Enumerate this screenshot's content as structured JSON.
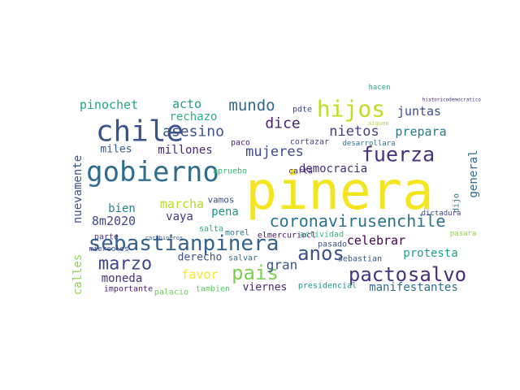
{
  "word_cloud": {
    "words": [
      {
        "text": "pinera",
        "color": "#f4e61e"
      },
      {
        "text": "chile",
        "color": "#3a558c"
      },
      {
        "text": "gobierno",
        "color": "#2f6c8e"
      },
      {
        "text": "hijos",
        "color": "#bddf26"
      },
      {
        "text": "sebastianpinera",
        "color": "#34618d"
      },
      {
        "text": "anos",
        "color": "#3c508b"
      },
      {
        "text": "fuerza",
        "color": "#46327e"
      },
      {
        "text": "coronavirusenchile",
        "color": "#2c728e"
      },
      {
        "text": "marzo",
        "color": "#3f4788"
      },
      {
        "text": "pacto",
        "color": "#453781"
      },
      {
        "text": "salvo",
        "color": "#472d7b"
      },
      {
        "text": "pais",
        "color": "#7ad151"
      },
      {
        "text": "mundo",
        "color": "#31688e"
      },
      {
        "text": "dice",
        "color": "#481f70"
      },
      {
        "text": "asesino",
        "color": "#3b528b"
      },
      {
        "text": "mujeres",
        "color": "#3e4989"
      },
      {
        "text": "pinochet",
        "color": "#22a884"
      },
      {
        "text": "acto",
        "color": "#1f9e89"
      },
      {
        "text": "juntas",
        "color": "#3d4d8a"
      },
      {
        "text": "nietos",
        "color": "#433e85"
      },
      {
        "text": "prepara",
        "color": "#2a788e"
      },
      {
        "text": "rechazo",
        "color": "#2db27d"
      },
      {
        "text": "millones",
        "color": "#482878"
      },
      {
        "text": "miles",
        "color": "#38598c"
      },
      {
        "text": "democracia",
        "color": "#472f7d"
      },
      {
        "text": "nuevamente",
        "color": "#3b528b"
      },
      {
        "text": "marcha",
        "color": "#b5de2b"
      },
      {
        "text": "bien",
        "color": "#26828e"
      },
      {
        "text": "pena",
        "color": "#21918c"
      },
      {
        "text": "vaya",
        "color": "#443a83"
      },
      {
        "text": "8m2020",
        "color": "#3e4a89"
      },
      {
        "text": "general",
        "color": "#2f6b8e"
      },
      {
        "text": "celebrar",
        "color": "#440154"
      },
      {
        "text": "protesta",
        "color": "#1fa088"
      },
      {
        "text": "gran",
        "color": "#3a548c"
      },
      {
        "text": "moneda",
        "color": "#46307e"
      },
      {
        "text": "favor",
        "color": "#fde725"
      },
      {
        "text": "derecho",
        "color": "#3b528b"
      },
      {
        "text": "calles",
        "color": "#8fd744"
      },
      {
        "text": "viernes",
        "color": "#482475"
      },
      {
        "text": "manifestantes",
        "color": "#2d708e"
      },
      {
        "text": "vamos",
        "color": "#3c4f8a"
      },
      {
        "text": "apruebo",
        "color": "#35b779"
      },
      {
        "text": "cortazar",
        "color": "#414487"
      },
      {
        "text": "carta",
        "color": "#472c7a"
      },
      {
        "text": "parte",
        "color": "#443983"
      },
      {
        "text": "salta",
        "color": "#27ad81"
      },
      {
        "text": "morel",
        "color": "#2a768e"
      },
      {
        "text": "elmercuriocl",
        "color": "#48186a"
      },
      {
        "text": "actividad",
        "color": "#31b57b"
      },
      {
        "text": "sebastian",
        "color": "#39558c"
      },
      {
        "text": "salvar",
        "color": "#2e6e8e"
      },
      {
        "text": "importante",
        "color": "#481b6d"
      },
      {
        "text": "tambien",
        "color": "#5ec962"
      },
      {
        "text": "palacio",
        "color": "#6ccd5a"
      },
      {
        "text": "presidencial",
        "color": "#1f958b"
      },
      {
        "text": "pasado",
        "color": "#3b528b"
      },
      {
        "text": "desarrollara",
        "color": "#2c718e"
      },
      {
        "text": "pdte",
        "color": "#3f4788"
      },
      {
        "text": "paco",
        "color": "#481d6f"
      },
      {
        "text": "hacen",
        "color": "#29af7f"
      },
      {
        "text": "dijo",
        "color": "#277f8e"
      },
      {
        "text": "dictadura",
        "color": "#404688"
      },
      {
        "text": "pasara",
        "color": "#95d840"
      },
      {
        "text": "miercoles",
        "color": "#3f4889"
      },
      {
        "text": "carabineros",
        "color": "#3a538b"
      },
      {
        "text": "historico",
        "color": "#482374"
      },
      {
        "text": "democratico",
        "color": "#453882"
      },
      {
        "text": "siguen",
        "color": "#a8db34"
      }
    ]
  }
}
